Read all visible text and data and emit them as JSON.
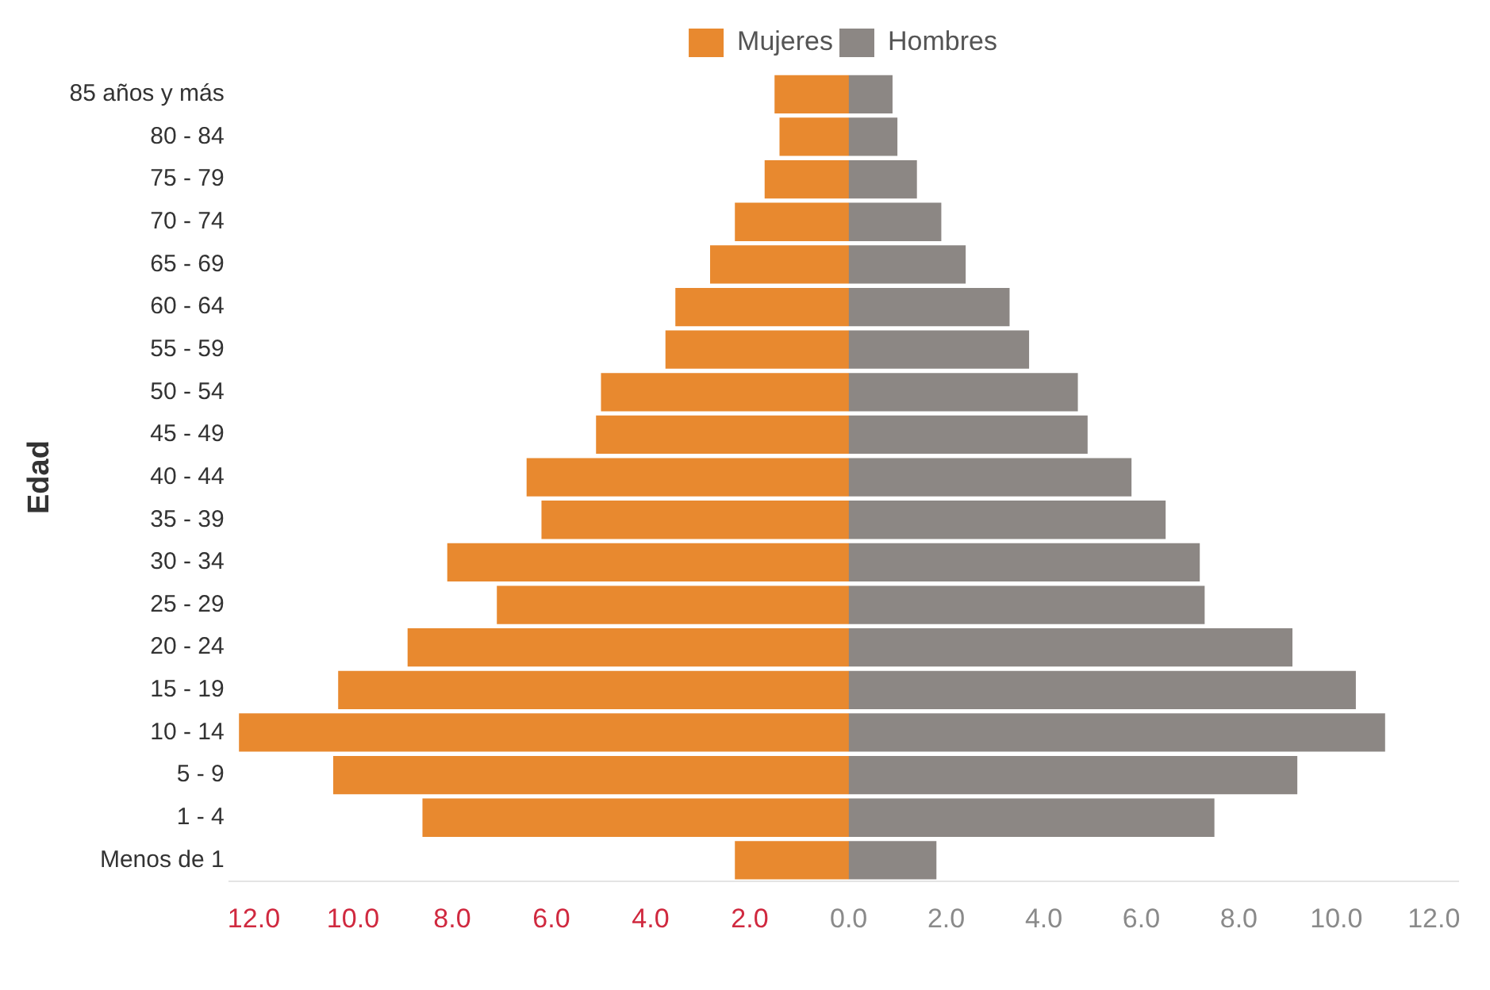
{
  "chart_data": [
    {
      "type": "bar",
      "orientation": "horizontal",
      "ylabel": "Edad",
      "legend": "top right",
      "grid": false,
      "categories": [
        "85 años y más",
        "80 - 84",
        "75 - 79",
        "70 - 74",
        "65 - 69",
        "60 - 64",
        "55 - 59",
        "50 - 54",
        "45 - 49",
        "40 - 44",
        "35 - 39",
        "30 - 34",
        "25 - 29",
        "20 - 24",
        "15 - 19",
        "10 - 14",
        "5 - 9",
        "1 - 4",
        "Menos de 1"
      ],
      "series": [
        {
          "name": "Mujeres",
          "color": "#e8892f",
          "values": [
            1.5,
            1.4,
            1.7,
            2.3,
            2.8,
            3.5,
            3.7,
            5.0,
            5.1,
            6.5,
            6.2,
            8.1,
            7.1,
            8.9,
            10.3,
            12.3,
            10.4,
            8.6,
            2.3
          ]
        }
      ],
      "xlim": [
        12.5,
        0
      ],
      "xticks": [
        {
          "value": 12,
          "label": "12.0"
        },
        {
          "value": 10,
          "label": "10.0"
        },
        {
          "value": 8,
          "label": "8.0"
        },
        {
          "value": 6,
          "label": "6.0"
        },
        {
          "value": 4,
          "label": "4.0"
        },
        {
          "value": 2,
          "label": "2.0"
        }
      ]
    },
    {
      "type": "bar",
      "orientation": "horizontal",
      "legend": "top left",
      "grid": false,
      "tick_labels": "x",
      "categories": [
        null,
        null,
        null,
        null,
        null,
        null,
        null,
        null,
        null,
        null,
        null,
        null,
        null,
        null,
        null,
        null,
        null,
        null,
        null
      ],
      "series": [
        {
          "name": "Hombres",
          "color": "#8c8784",
          "values": [
            0.9,
            1.0,
            1.4,
            1.9,
            2.4,
            3.3,
            3.7,
            4.7,
            4.9,
            5.8,
            6.5,
            7.2,
            7.3,
            9.1,
            10.4,
            11.0,
            9.2,
            7.5,
            1.8
          ]
        }
      ],
      "xlim": [
        0,
        12.5
      ],
      "xticks": [
        {
          "value": 0,
          "label": "0.0"
        },
        {
          "value": 2,
          "label": "2.0"
        },
        {
          "value": 4,
          "label": "4.0"
        },
        {
          "value": 6,
          "label": "6.0"
        },
        {
          "value": 8,
          "label": "8.0"
        },
        {
          "value": 10,
          "label": "10.0"
        },
        {
          "value": 12,
          "label": "12.0"
        }
      ]
    }
  ]
}
